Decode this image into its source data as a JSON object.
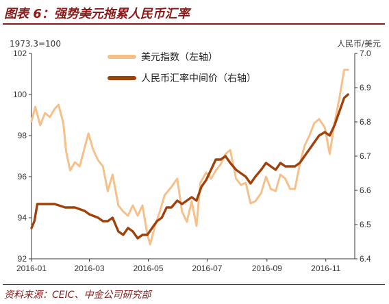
{
  "figure": {
    "title": "图表 6：强势美元拖累人民币汇率",
    "source": "资料来源：CEIC、中金公司研究部"
  },
  "chart_data": {
    "type": "line",
    "title": "强势美元拖累人民币汇率",
    "left_axis_note": "1973.3=100",
    "right_axis_note": "人民币/美元",
    "y_left": {
      "min": 92,
      "max": 102,
      "ticks": [
        "92",
        "94",
        "96",
        "98",
        "100",
        "102"
      ]
    },
    "y_right": {
      "min": 6.4,
      "max": 7.0,
      "ticks": [
        "6.4",
        "6.5",
        "6.6",
        "6.7",
        "6.8",
        "6.9",
        "7.0"
      ]
    },
    "x_ticks": [
      "2016-01",
      "2016-03",
      "2016-05",
      "2016-07",
      "2016-09",
      "2016-11"
    ],
    "x_range": [
      "2016-01",
      "2016-12"
    ],
    "grid": false,
    "legend_position": "top-center",
    "series": [
      {
        "name": "美元指数（左轴）",
        "axis": "left",
        "color": "#F6C08A",
        "points": [
          [
            "2016-01-01",
            98.7
          ],
          [
            "2016-01-05",
            99.4
          ],
          [
            "2016-01-10",
            98.5
          ],
          [
            "2016-01-15",
            99.1
          ],
          [
            "2016-01-20",
            98.9
          ],
          [
            "2016-01-25",
            99.3
          ],
          [
            "2016-01-29",
            99.5
          ],
          [
            "2016-02-03",
            98.6
          ],
          [
            "2016-02-06",
            97.2
          ],
          [
            "2016-02-10",
            96.3
          ],
          [
            "2016-02-15",
            96.7
          ],
          [
            "2016-02-20",
            96.5
          ],
          [
            "2016-02-25",
            97.4
          ],
          [
            "2016-02-29",
            98.1
          ],
          [
            "2016-03-05",
            97.3
          ],
          [
            "2016-03-10",
            96.8
          ],
          [
            "2016-03-15",
            96.5
          ],
          [
            "2016-03-20",
            95.3
          ],
          [
            "2016-03-25",
            96.1
          ],
          [
            "2016-03-31",
            94.6
          ],
          [
            "2016-04-05",
            94.3
          ],
          [
            "2016-04-10",
            94.1
          ],
          [
            "2016-04-15",
            94.6
          ],
          [
            "2016-04-20",
            94.1
          ],
          [
            "2016-04-25",
            94.6
          ],
          [
            "2016-04-30",
            93.2
          ],
          [
            "2016-05-03",
            92.7
          ],
          [
            "2016-05-08",
            93.6
          ],
          [
            "2016-05-13",
            94.3
          ],
          [
            "2016-05-18",
            95.1
          ],
          [
            "2016-05-25",
            95.5
          ],
          [
            "2016-05-31",
            95.9
          ],
          [
            "2016-06-05",
            94.3
          ],
          [
            "2016-06-10",
            93.8
          ],
          [
            "2016-06-15",
            94.8
          ],
          [
            "2016-06-20",
            93.6
          ],
          [
            "2016-06-24",
            95.7
          ],
          [
            "2016-06-30",
            96.2
          ],
          [
            "2016-07-05",
            95.9
          ],
          [
            "2016-07-10",
            96.3
          ],
          [
            "2016-07-15",
            96.6
          ],
          [
            "2016-07-20",
            97.1
          ],
          [
            "2016-07-25",
            97.3
          ],
          [
            "2016-07-31",
            95.9
          ],
          [
            "2016-08-05",
            95.6
          ],
          [
            "2016-08-10",
            95.7
          ],
          [
            "2016-08-15",
            94.7
          ],
          [
            "2016-08-20",
            94.8
          ],
          [
            "2016-08-26",
            95.2
          ],
          [
            "2016-08-31",
            96.0
          ],
          [
            "2016-09-05",
            95.4
          ],
          [
            "2016-09-10",
            95.3
          ],
          [
            "2016-09-15",
            96.1
          ],
          [
            "2016-09-20",
            95.9
          ],
          [
            "2016-09-25",
            95.4
          ],
          [
            "2016-09-30",
            95.4
          ],
          [
            "2016-10-05",
            96.6
          ],
          [
            "2016-10-10",
            97.5
          ],
          [
            "2016-10-15",
            98.0
          ],
          [
            "2016-10-20",
            98.6
          ],
          [
            "2016-10-25",
            98.8
          ],
          [
            "2016-10-31",
            98.4
          ],
          [
            "2016-11-05",
            97.1
          ],
          [
            "2016-11-10",
            98.6
          ],
          [
            "2016-11-15",
            99.8
          ],
          [
            "2016-11-20",
            101.2
          ],
          [
            "2016-11-24",
            101.2
          ]
        ]
      },
      {
        "name": "人民币汇率中间价（右轴）",
        "axis": "right",
        "color": "#A0400B",
        "points": [
          [
            "2016-01-01",
            6.49
          ],
          [
            "2016-01-04",
            6.51
          ],
          [
            "2016-01-07",
            6.56
          ],
          [
            "2016-01-15",
            6.56
          ],
          [
            "2016-01-25",
            6.56
          ],
          [
            "2016-02-05",
            6.55
          ],
          [
            "2016-02-15",
            6.55
          ],
          [
            "2016-02-25",
            6.54
          ],
          [
            "2016-03-01",
            6.53
          ],
          [
            "2016-03-10",
            6.52
          ],
          [
            "2016-03-15",
            6.51
          ],
          [
            "2016-03-20",
            6.51
          ],
          [
            "2016-03-25",
            6.52
          ],
          [
            "2016-03-31",
            6.48
          ],
          [
            "2016-04-05",
            6.47
          ],
          [
            "2016-04-10",
            6.49
          ],
          [
            "2016-04-15",
            6.48
          ],
          [
            "2016-04-20",
            6.46
          ],
          [
            "2016-04-25",
            6.47
          ],
          [
            "2016-04-30",
            6.47
          ],
          [
            "2016-05-05",
            6.49
          ],
          [
            "2016-05-10",
            6.51
          ],
          [
            "2016-05-15",
            6.52
          ],
          [
            "2016-05-20",
            6.55
          ],
          [
            "2016-05-25",
            6.55
          ],
          [
            "2016-05-31",
            6.57
          ],
          [
            "2016-06-05",
            6.56
          ],
          [
            "2016-06-10",
            6.57
          ],
          [
            "2016-06-15",
            6.58
          ],
          [
            "2016-06-20",
            6.57
          ],
          [
            "2016-06-25",
            6.61
          ],
          [
            "2016-06-30",
            6.63
          ],
          [
            "2016-07-05",
            6.66
          ],
          [
            "2016-07-10",
            6.69
          ],
          [
            "2016-07-15",
            6.69
          ],
          [
            "2016-07-20",
            6.7
          ],
          [
            "2016-07-25",
            6.68
          ],
          [
            "2016-07-31",
            6.66
          ],
          [
            "2016-08-05",
            6.65
          ],
          [
            "2016-08-10",
            6.64
          ],
          [
            "2016-08-15",
            6.62
          ],
          [
            "2016-08-20",
            6.64
          ],
          [
            "2016-08-26",
            6.66
          ],
          [
            "2016-08-31",
            6.68
          ],
          [
            "2016-09-05",
            6.67
          ],
          [
            "2016-09-10",
            6.66
          ],
          [
            "2016-09-15",
            6.68
          ],
          [
            "2016-09-20",
            6.67
          ],
          [
            "2016-09-25",
            6.67
          ],
          [
            "2016-09-30",
            6.67
          ],
          [
            "2016-10-05",
            6.68
          ],
          [
            "2016-10-10",
            6.7
          ],
          [
            "2016-10-15",
            6.72
          ],
          [
            "2016-10-20",
            6.74
          ],
          [
            "2016-10-25",
            6.76
          ],
          [
            "2016-10-31",
            6.77
          ],
          [
            "2016-11-05",
            6.76
          ],
          [
            "2016-11-10",
            6.79
          ],
          [
            "2016-11-15",
            6.83
          ],
          [
            "2016-11-20",
            6.87
          ],
          [
            "2016-11-24",
            6.88
          ]
        ]
      }
    ]
  }
}
